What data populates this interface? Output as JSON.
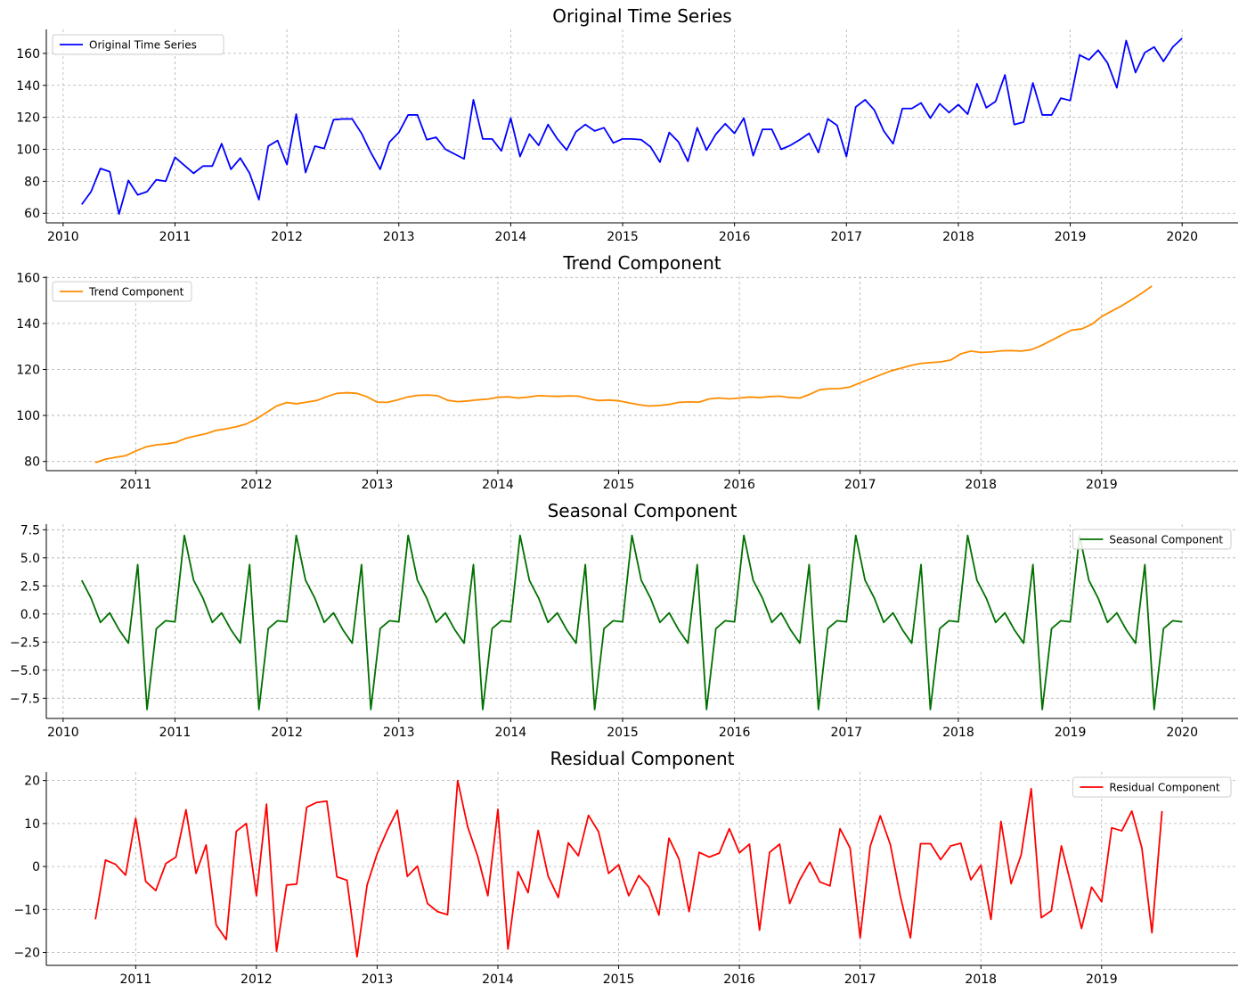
{
  "chart_data": [
    {
      "type": "line",
      "title": "Original Time Series",
      "xlabel": "",
      "ylabel": "",
      "x_start": "2010-03",
      "x_end": "2020-01",
      "xlim": [
        2009.85,
        2020.5
      ],
      "ylim": [
        54,
        175
      ],
      "yticks": [
        60,
        80,
        100,
        120,
        140,
        160
      ],
      "xticks": [
        2010,
        2011,
        2012,
        2013,
        2014,
        2015,
        2016,
        2017,
        2018,
        2019,
        2020
      ],
      "grid": true,
      "legend_position": "upper-left",
      "series": [
        {
          "name": "Original Time Series",
          "color": "#0000ff",
          "values": [
            65.5,
            73.5,
            88,
            86,
            59.5,
            80.5,
            71.5,
            73.5,
            81,
            80,
            95,
            90,
            85,
            89.5,
            89.5,
            103.5,
            87.5,
            94.5,
            85,
            68.5,
            102,
            105.5,
            90.5,
            122,
            85.5,
            102,
            100.5,
            118.5,
            119,
            119,
            110,
            98,
            87.5,
            104.5,
            110.5,
            121.5,
            121.5,
            106,
            107.5,
            100,
            97,
            94,
            131,
            106.5,
            106.5,
            99,
            119.5,
            95.5,
            109.5,
            102.5,
            115.5,
            106.5,
            99.5,
            111,
            115.5,
            111.5,
            113.5,
            104,
            106.5,
            106.5,
            106,
            101.5,
            92,
            110.5,
            104.5,
            92.5,
            113.5,
            99.5,
            109.5,
            116,
            110,
            119.5,
            96,
            112.5,
            112.5,
            100,
            102.5,
            106,
            110,
            98,
            119,
            115,
            95.5,
            126.5,
            131,
            124.5,
            111.5,
            103.5,
            125.5,
            125.5,
            129,
            119.5,
            128.5,
            123,
            128,
            122,
            141,
            126,
            130,
            146.5,
            115.5,
            117,
            141.5,
            121.5,
            121.5,
            132,
            130.5,
            159,
            156,
            162,
            154,
            138.5,
            168,
            148,
            160.5,
            164,
            155,
            164,
            169.5
          ]
        }
      ]
    },
    {
      "type": "line",
      "title": "Trend Component",
      "xlabel": "",
      "ylabel": "",
      "x_start": "2010-09",
      "x_end": "2019-07",
      "xlim": [
        2010.26,
        2020.13
      ],
      "ylim": [
        76,
        160.5
      ],
      "yticks": [
        80,
        100,
        120,
        140,
        160
      ],
      "xticks": [
        2011,
        2012,
        2013,
        2014,
        2015,
        2016,
        2017,
        2018,
        2019
      ],
      "grid": true,
      "legend_position": "upper-left",
      "series": [
        {
          "name": "Trend Component",
          "color": "#ff8c00",
          "values": [
            79.5,
            81,
            81.8,
            82.5,
            84.5,
            86.3,
            87.2,
            87.6,
            88.3,
            90.1,
            91.1,
            92.1,
            93.5,
            94.2,
            95.1,
            96.3,
            98.5,
            101.3,
            104.1,
            105.6,
            105.1,
            105.8,
            106.5,
            108.2,
            109.6,
            109.9,
            109.6,
            108.1,
            105.8,
            105.7,
            106.7,
            108,
            108.7,
            108.9,
            108.6,
            106.6,
            106,
            106.3,
            106.8,
            107.1,
            107.9,
            108.1,
            107.6,
            108,
            108.6,
            108.4,
            108.3,
            108.5,
            108.4,
            107.3,
            106.5,
            106.7,
            106.4,
            105.5,
            104.7,
            104.1,
            104.3,
            104.8,
            105.7,
            105.9,
            105.8,
            107.2,
            107.6,
            107.2,
            107.6,
            108,
            107.8,
            108.2,
            108.4,
            107.8,
            107.6,
            109.2,
            111.2,
            111.6,
            111.7,
            112.4,
            114.2,
            115.9,
            117.6,
            119.3,
            120.5,
            121.7,
            122.6,
            123,
            123.3,
            124.1,
            126.8,
            128,
            127.4,
            127.6,
            128.1,
            128.2,
            128,
            128.6,
            130.4,
            132.6,
            134.9,
            137.1,
            137.6,
            139.6,
            143,
            145.4,
            147.7,
            150.4,
            153.2,
            156.3
          ]
        }
      ]
    },
    {
      "type": "line",
      "title": "Seasonal Component",
      "xlabel": "",
      "ylabel": "",
      "x_start": "2010-03",
      "x_end": "2020-01",
      "xlim": [
        2009.85,
        2020.5
      ],
      "ylim": [
        -9.3,
        8
      ],
      "yticks": [
        7.5,
        5.0,
        2.5,
        0.0,
        -2.5,
        -5.0,
        -7.5
      ],
      "ytick_labels": [
        "7.5",
        "5.0",
        "2.5",
        "0.0",
        "−2.5",
        "−5.0",
        "−7.5"
      ],
      "xticks": [
        2010,
        2011,
        2012,
        2013,
        2014,
        2015,
        2016,
        2017,
        2018,
        2019,
        2020
      ],
      "grid": true,
      "legend_position": "upper-right",
      "cycle": [
        3.0,
        1.4,
        -0.75,
        0.1,
        -1.4,
        -2.6,
        4.4,
        -8.5,
        -1.3,
        -0.6,
        -0.7,
        7.0
      ],
      "series": [
        {
          "name": "Seasonal Component",
          "color": "#007000",
          "values": [
            3.0,
            1.4,
            -0.75,
            0.1,
            -1.4,
            -2.6,
            4.4,
            -8.5,
            -1.3,
            -0.6,
            -0.7,
            7.0,
            3.0,
            1.4,
            -0.75,
            0.1,
            -1.4,
            -2.6,
            4.4,
            -8.5,
            -1.3,
            -0.6,
            -0.7,
            7.0,
            3.0,
            1.4,
            -0.75,
            0.1,
            -1.4,
            -2.6,
            4.4,
            -8.5,
            -1.3,
            -0.6,
            -0.7,
            7.0,
            3.0,
            1.4,
            -0.75,
            0.1,
            -1.4,
            -2.6,
            4.4,
            -8.5,
            -1.3,
            -0.6,
            -0.7,
            7.0,
            3.0,
            1.4,
            -0.75,
            0.1,
            -1.4,
            -2.6,
            4.4,
            -8.5,
            -1.3,
            -0.6,
            -0.7,
            7.0,
            3.0,
            1.4,
            -0.75,
            0.1,
            -1.4,
            -2.6,
            4.4,
            -8.5,
            -1.3,
            -0.6,
            -0.7,
            7.0,
            3.0,
            1.4,
            -0.75,
            0.1,
            -1.4,
            -2.6,
            4.4,
            -8.5,
            -1.3,
            -0.6,
            -0.7,
            7.0,
            3.0,
            1.4,
            -0.75,
            0.1,
            -1.4,
            -2.6,
            4.4,
            -8.5,
            -1.3,
            -0.6,
            -0.7,
            7.0,
            3.0,
            1.4,
            -0.75,
            0.1,
            -1.4,
            -2.6,
            4.4,
            -8.5,
            -1.3,
            -0.6,
            -0.7,
            7.0,
            3.0,
            1.4,
            -0.75,
            0.1,
            -1.4,
            -2.6,
            4.4,
            -8.5,
            -1.3,
            -0.6,
            -0.7
          ]
        }
      ]
    },
    {
      "type": "line",
      "title": "Residual Component",
      "xlabel": "",
      "ylabel": "",
      "x_start": "2010-09",
      "x_end": "2019-07",
      "xlim": [
        2010.26,
        2020.13
      ],
      "ylim": [
        -23,
        22
      ],
      "yticks": [
        20,
        10,
        0,
        -10,
        -20
      ],
      "ytick_labels": [
        "20",
        "10",
        "0",
        "−10",
        "−20"
      ],
      "xticks": [
        2011,
        2012,
        2013,
        2014,
        2015,
        2016,
        2017,
        2018,
        2019
      ],
      "grid": true,
      "legend_position": "upper-right",
      "series": [
        {
          "name": "Residual Component",
          "color": "#ff0000",
          "values": [
            -12.3,
            1.5,
            0.5,
            -2,
            11.2,
            -3.5,
            -5.6,
            0.7,
            2.2,
            13.2,
            -1.6,
            5,
            -13.6,
            -17,
            8.2,
            10,
            -6.8,
            14.5,
            -19.7,
            -4.3,
            -4.1,
            13.8,
            14.9,
            15.2,
            -2.4,
            -3.2,
            -21,
            -4.3,
            3,
            8.4,
            13.1,
            -2.3,
            0.1,
            -8.6,
            -10.5,
            -11.2,
            20,
            9.2,
            2.3,
            -6.8,
            13.3,
            -19.2,
            -1.2,
            -6.1,
            8.4,
            -2.3,
            -7.2,
            5.5,
            2.5,
            11.9,
            8.1,
            -1.6,
            0.4,
            -6.8,
            -2.1,
            -4.8,
            -11.3,
            6.6,
            1.7,
            -10.5,
            3.3,
            2.2,
            3.1,
            8.8,
            3.2,
            5.2,
            -14.8,
            3.3,
            5.2,
            -8.6,
            -3.1,
            1,
            -3.6,
            -4.5,
            8.8,
            4.3,
            -16.6,
            4.7,
            11.8,
            5.1,
            -7,
            -16.6,
            5.3,
            5.3,
            1.6,
            4.8,
            5.4,
            -3.1,
            0.3,
            -12.3,
            10.5,
            -4,
            2.7,
            18.1,
            -11.9,
            -10.3,
            4.8,
            -4.6,
            -14.4,
            -4.8,
            -8.2,
            9,
            8.3,
            12.9,
            4.3,
            -15.4,
            12.9
          ]
        }
      ]
    }
  ]
}
